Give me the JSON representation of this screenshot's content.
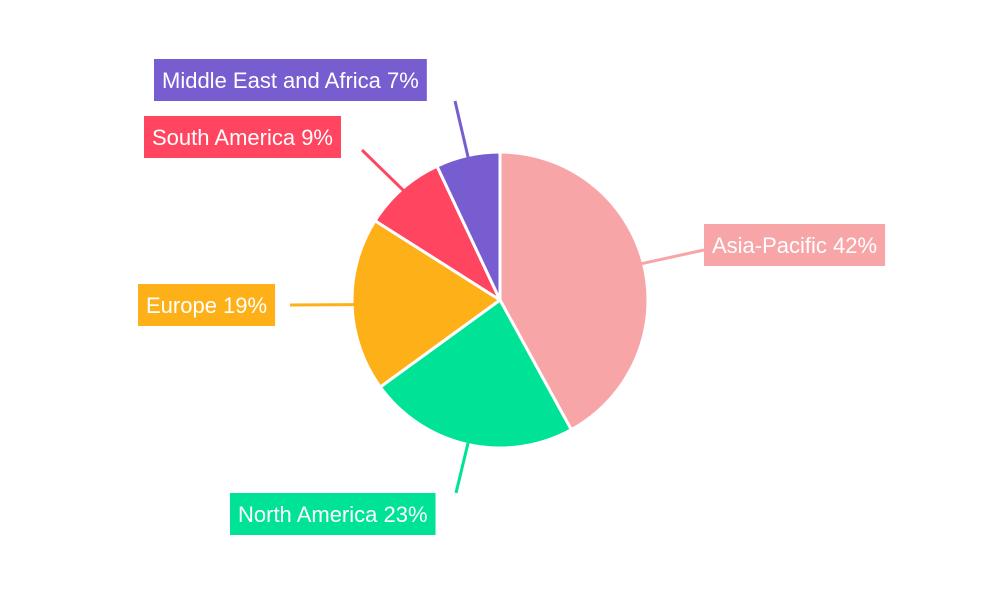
{
  "chart_data": {
    "type": "pie",
    "start_angle_deg": 0,
    "direction": "clockwise",
    "legend": "none",
    "slices": [
      {
        "label": "Asia-Pacific",
        "value": 42,
        "display": "Asia-Pacific 42%",
        "color": "#F8A5A8"
      },
      {
        "label": "North America",
        "value": 23,
        "display": "North America 23%",
        "color": "#00E396"
      },
      {
        "label": "Europe",
        "value": 19,
        "display": "Europe 19%",
        "color": "#FEB019"
      },
      {
        "label": "South America",
        "value": 9,
        "display": "South America 9%",
        "color": "#FF4560"
      },
      {
        "label": "Middle East and Africa",
        "value": 7,
        "display": "Middle East and Africa 7%",
        "color": "#775DD0"
      }
    ]
  }
}
